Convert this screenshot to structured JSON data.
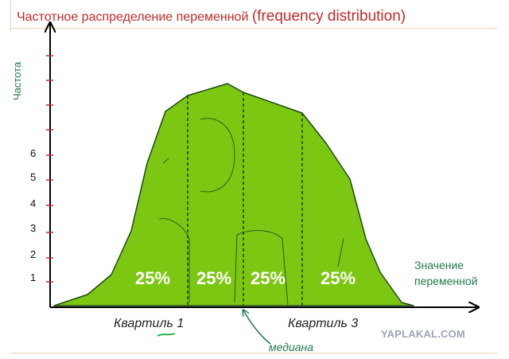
{
  "title": {
    "ru": "Частотное распределение переменной",
    "en": "(frequency distribution)"
  },
  "y_axis_label": "Частота",
  "x_axis_label": [
    "Значение",
    "переменной"
  ],
  "y_ticks": [
    "1",
    "2",
    "3",
    "4",
    "5",
    "6"
  ],
  "quartile_labels": [
    "Квартиль 1",
    "Квартиль 3"
  ],
  "median_label": "медиана",
  "percent_labels": [
    "25%",
    "25%",
    "25%",
    "25%"
  ],
  "watermark": "YAPLAKAL.COM",
  "colors": {
    "fill": "#7cc712",
    "outline": "#1e4a12",
    "title": "#c22a2a",
    "axis_text": "#1f7a4c"
  }
}
